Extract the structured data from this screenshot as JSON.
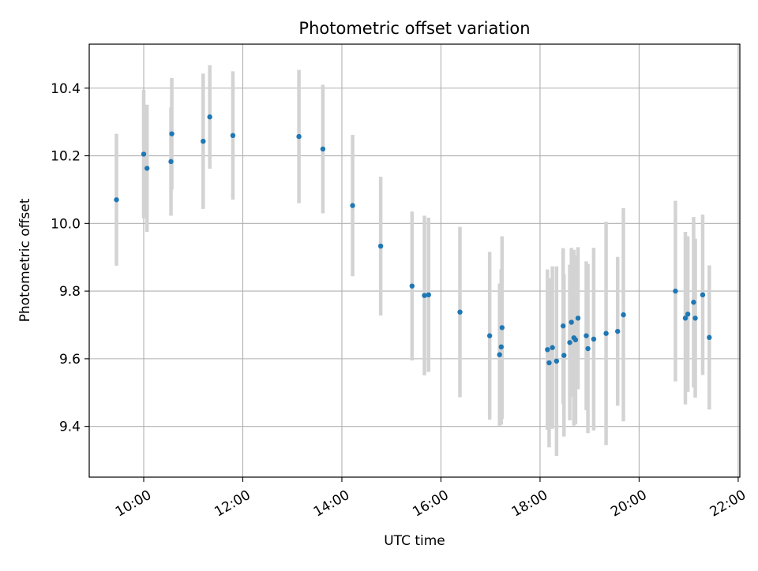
{
  "chart_data": {
    "type": "scatter",
    "title": "Photometric offset variation",
    "xlabel": "UTC time",
    "ylabel": "Photometric offset",
    "xlim": [
      "08:54",
      "22:02"
    ],
    "ylim": [
      9.25,
      10.53
    ],
    "grid": true,
    "x_ticks": [
      "10:00",
      "12:00",
      "14:00",
      "16:00",
      "18:00",
      "20:00",
      "22:00"
    ],
    "y_ticks": [
      "9.4",
      "9.6",
      "9.8",
      "10.0",
      "10.2",
      "10.4"
    ],
    "colors": {
      "points": "#1f77b4",
      "error_bars": "#d3d3d3",
      "grid": "#b0b0b0"
    },
    "series": [
      {
        "points": [
          {
            "x": "09:27",
            "y": 10.07,
            "err": 0.195
          },
          {
            "x": "10:00",
            "y": 10.205,
            "err": 0.19
          },
          {
            "x": "10:04",
            "y": 10.163,
            "err": 0.188
          },
          {
            "x": "10:33",
            "y": 10.183,
            "err": 0.16
          },
          {
            "x": "10:34",
            "y": 10.265,
            "err": 0.165
          },
          {
            "x": "11:12",
            "y": 10.243,
            "err": 0.2
          },
          {
            "x": "11:20",
            "y": 10.315,
            "err": 0.153
          },
          {
            "x": "11:48",
            "y": 10.26,
            "err": 0.19
          },
          {
            "x": "13:08",
            "y": 10.257,
            "err": 0.197
          },
          {
            "x": "13:37",
            "y": 10.22,
            "err": 0.19
          },
          {
            "x": "14:13",
            "y": 10.053,
            "err": 0.209
          },
          {
            "x": "14:47",
            "y": 9.933,
            "err": 0.205
          },
          {
            "x": "15:25",
            "y": 9.815,
            "err": 0.22
          },
          {
            "x": "15:40",
            "y": 9.787,
            "err": 0.236
          },
          {
            "x": "15:45",
            "y": 9.789,
            "err": 0.228
          },
          {
            "x": "16:23",
            "y": 9.738,
            "err": 0.252
          },
          {
            "x": "16:59",
            "y": 9.668,
            "err": 0.248
          },
          {
            "x": "17:11",
            "y": 9.612,
            "err": 0.21
          },
          {
            "x": "17:13",
            "y": 9.635,
            "err": 0.23
          },
          {
            "x": "17:14",
            "y": 9.692,
            "err": 0.27
          },
          {
            "x": "18:09",
            "y": 9.627,
            "err": 0.237
          },
          {
            "x": "18:11",
            "y": 9.588,
            "err": 0.25
          },
          {
            "x": "18:15",
            "y": 9.633,
            "err": 0.24
          },
          {
            "x": "18:20",
            "y": 9.593,
            "err": 0.28
          },
          {
            "x": "18:28",
            "y": 9.697,
            "err": 0.23
          },
          {
            "x": "18:29",
            "y": 9.61,
            "err": 0.24
          },
          {
            "x": "18:36",
            "y": 9.648,
            "err": 0.23
          },
          {
            "x": "18:38",
            "y": 9.708,
            "err": 0.22
          },
          {
            "x": "18:41",
            "y": 9.662,
            "err": 0.26
          },
          {
            "x": "18:43",
            "y": 9.656,
            "err": 0.25
          },
          {
            "x": "18:46",
            "y": 9.72,
            "err": 0.21
          },
          {
            "x": "18:56",
            "y": 9.668,
            "err": 0.22
          },
          {
            "x": "18:58",
            "y": 9.63,
            "err": 0.25
          },
          {
            "x": "19:05",
            "y": 9.658,
            "err": 0.27
          },
          {
            "x": "19:20",
            "y": 9.675,
            "err": 0.33
          },
          {
            "x": "19:34",
            "y": 9.681,
            "err": 0.22
          },
          {
            "x": "19:41",
            "y": 9.73,
            "err": 0.315
          },
          {
            "x": "20:44",
            "y": 9.8,
            "err": 0.267
          },
          {
            "x": "20:56",
            "y": 9.72,
            "err": 0.255
          },
          {
            "x": "20:59",
            "y": 9.732,
            "err": 0.23
          },
          {
            "x": "21:06",
            "y": 9.767,
            "err": 0.252
          },
          {
            "x": "21:08",
            "y": 9.72,
            "err": 0.235
          },
          {
            "x": "21:17",
            "y": 9.789,
            "err": 0.237
          },
          {
            "x": "21:25",
            "y": 9.663,
            "err": 0.213
          }
        ]
      }
    ]
  }
}
